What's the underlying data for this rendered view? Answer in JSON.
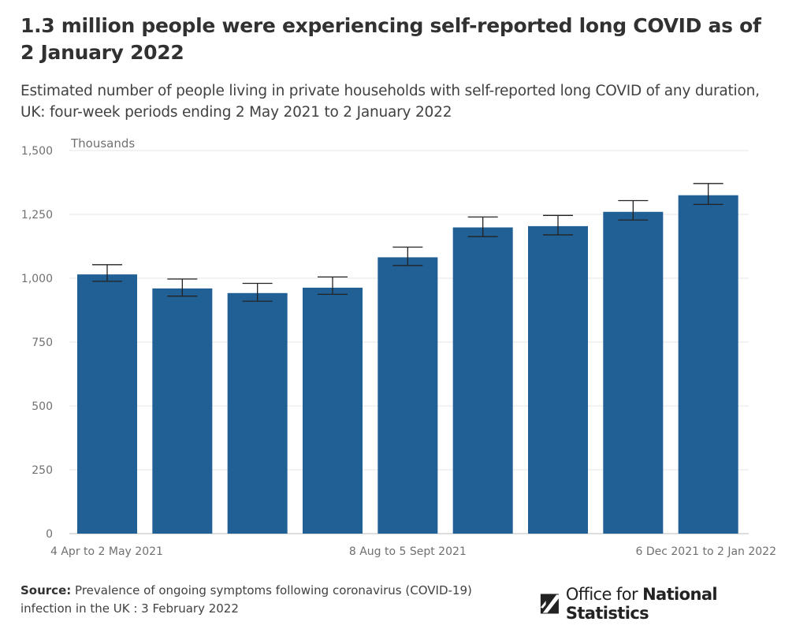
{
  "header": {
    "title": "1.3 million people were experiencing self-reported long COVID as of 2 January 2022",
    "subtitle": "Estimated number of people living in private households with self-reported long COVID of any duration, UK: four-week periods ending 2 May 2021 to 2 January 2022"
  },
  "footer": {
    "source_label": "Source:",
    "source_text": "Prevalence of ongoing symptoms following coronavirus (COVID-19) infection in the UK : 3 February 2022",
    "logo_text_light": "Office for ",
    "logo_text_bold": "National Statistics"
  },
  "colors": {
    "bar": "#206095",
    "grid": "#e6e6e6",
    "axis": "#bebebe",
    "error": "#222222"
  },
  "chart_data": {
    "type": "bar",
    "title": "1.3 million people were experiencing self-reported long COVID as of 2 January 2022",
    "ylabel": "Thousands",
    "ylim": [
      0,
      1500
    ],
    "yticks": [
      0,
      250,
      500,
      750,
      1000,
      1250,
      1500
    ],
    "ytick_labels": [
      "0",
      "250",
      "500",
      "750",
      "1,000",
      "1,250",
      "1,500"
    ],
    "categories": [
      "4 Apr to 2 May 2021",
      "",
      "",
      "",
      "8 Aug to 5 Sept 2021",
      "",
      "",
      "",
      "6 Dec 2021 to 2 Jan 2022"
    ],
    "values": [
      1015,
      960,
      942,
      963,
      1082,
      1199,
      1204,
      1260,
      1325
    ],
    "error_low": [
      988,
      930,
      910,
      937,
      1050,
      1163,
      1170,
      1228,
      1289
    ],
    "error_high": [
      1053,
      997,
      980,
      1005,
      1122,
      1240,
      1246,
      1304,
      1371
    ],
    "grid": true,
    "legend": "none"
  }
}
